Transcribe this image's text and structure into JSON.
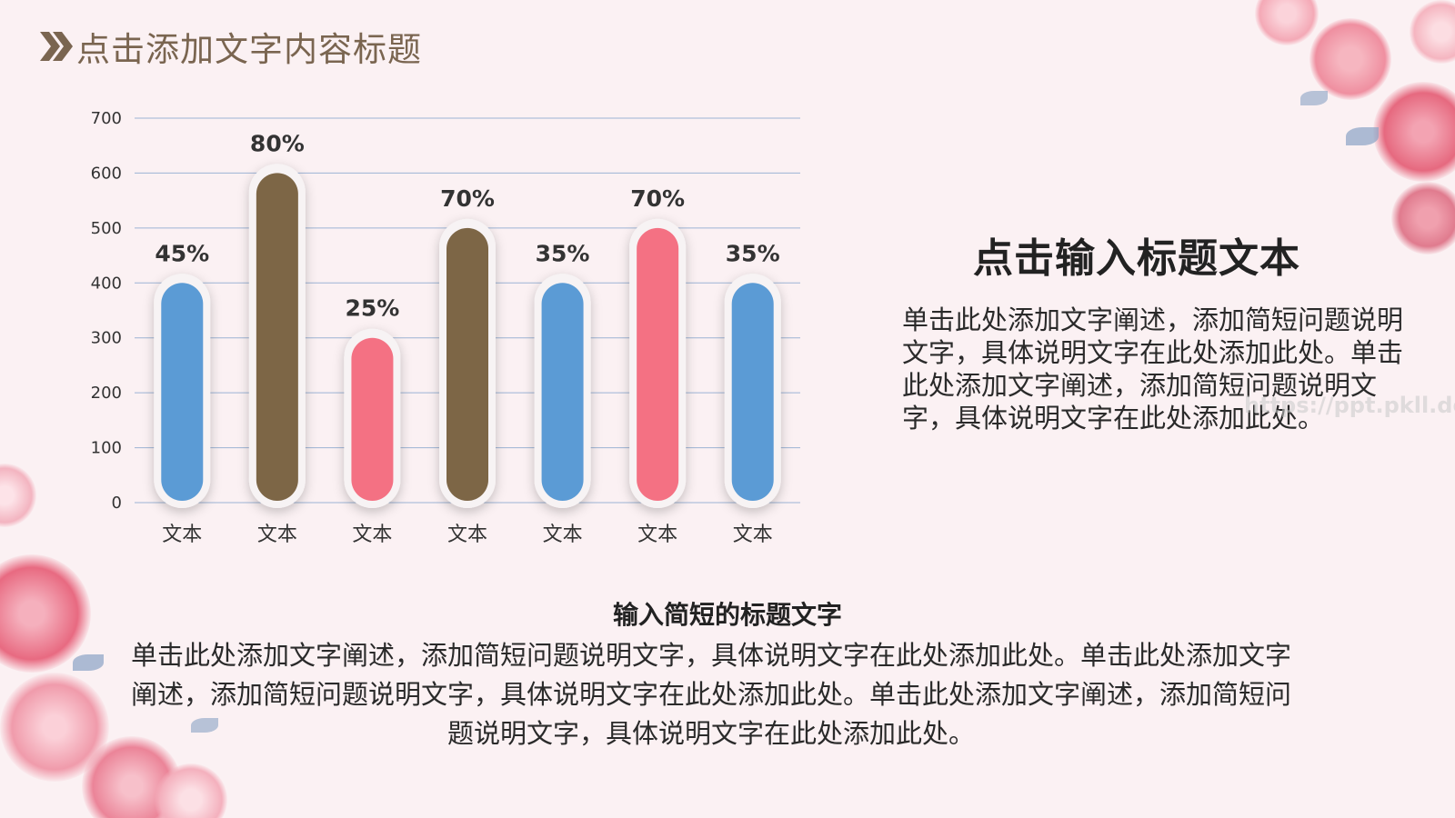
{
  "header": {
    "title": "点击添加文字内容标题"
  },
  "side": {
    "title": "点击输入标题文本",
    "text": "单击此处添加文字阐述，添加简短问题说明文字，具体说明文字在此处添加此处。单击此处添加文字阐述，添加简短问题说明文字，具体说明文字在此处添加此处。"
  },
  "bottom": {
    "title": "输入简短的标题文字",
    "text": "单击此处添加文字阐述，添加简短问题说明文字，具体说明文字在此处添加此处。单击此处添加文字阐述，添加简短问题说明文字，具体说明文字在此处添加此处。单击此处添加文字阐述，添加简短问题说明文字，具体说明文字在此处添加此处。"
  },
  "watermark": "https://ppt.pkll.de",
  "colors": {
    "blue": "#5b9bd5",
    "brown": "#7d6646",
    "pink": "#f47183",
    "header": "#7a6550"
  },
  "chart_data": {
    "type": "bar",
    "categories": [
      "文本",
      "文本",
      "文本",
      "文本",
      "文本",
      "文本",
      "文本"
    ],
    "values": [
      400,
      600,
      300,
      500,
      400,
      500,
      400
    ],
    "data_labels": [
      "45%",
      "80%",
      "25%",
      "70%",
      "35%",
      "70%",
      "35%"
    ],
    "bar_colors": [
      "#5b9bd5",
      "#7d6646",
      "#f47183",
      "#7d6646",
      "#5b9bd5",
      "#f47183",
      "#5b9bd5"
    ],
    "ylim": [
      0,
      700
    ],
    "yticks": [
      0,
      100,
      200,
      300,
      400,
      500,
      600,
      700
    ],
    "grid": true,
    "legend": "none"
  }
}
